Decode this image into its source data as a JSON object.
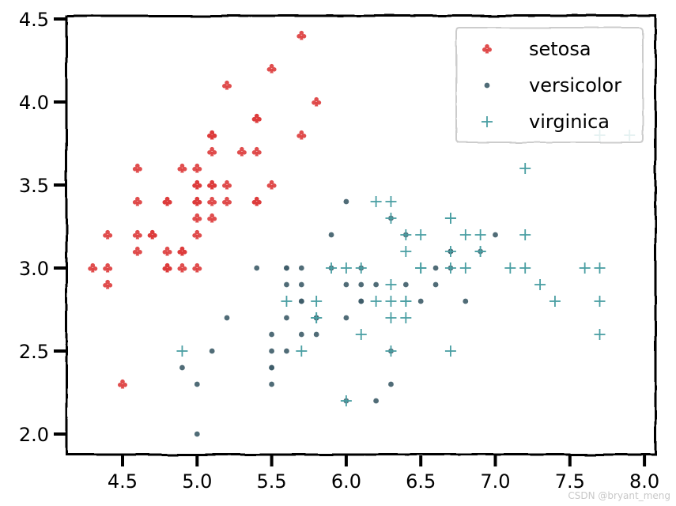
{
  "chart_data": {
    "type": "scatter",
    "title": "",
    "xlabel": "",
    "ylabel": "",
    "xlim": [
      4.2,
      8.1
    ],
    "ylim": [
      1.9,
      4.5
    ],
    "xticks": [
      "4.5",
      "5.0",
      "5.5",
      "6.0",
      "6.5",
      "7.0",
      "7.5",
      "8.0"
    ],
    "yticks": [
      "2.0",
      "2.5",
      "3.0",
      "3.5",
      "4.0",
      "4.5"
    ],
    "grid": false,
    "legend_position": "top-right",
    "series": [
      {
        "name": "setosa",
        "marker": "club",
        "color": "#dd3b3b",
        "points": [
          [
            5.1,
            3.5
          ],
          [
            4.9,
            3.0
          ],
          [
            4.7,
            3.2
          ],
          [
            4.6,
            3.1
          ],
          [
            5.0,
            3.6
          ],
          [
            5.4,
            3.9
          ],
          [
            4.6,
            3.4
          ],
          [
            5.0,
            3.4
          ],
          [
            4.4,
            2.9
          ],
          [
            4.9,
            3.1
          ],
          [
            5.4,
            3.7
          ],
          [
            4.8,
            3.4
          ],
          [
            4.8,
            3.0
          ],
          [
            4.3,
            3.0
          ],
          [
            5.8,
            4.0
          ],
          [
            5.7,
            4.4
          ],
          [
            5.4,
            3.9
          ],
          [
            5.1,
            3.5
          ],
          [
            5.7,
            3.8
          ],
          [
            5.1,
            3.8
          ],
          [
            5.4,
            3.4
          ],
          [
            5.1,
            3.7
          ],
          [
            4.6,
            3.6
          ],
          [
            5.1,
            3.3
          ],
          [
            4.8,
            3.4
          ],
          [
            5.0,
            3.0
          ],
          [
            5.0,
            3.4
          ],
          [
            5.2,
            3.5
          ],
          [
            5.2,
            3.4
          ],
          [
            4.7,
            3.2
          ],
          [
            4.8,
            3.1
          ],
          [
            5.4,
            3.4
          ],
          [
            5.2,
            4.1
          ],
          [
            5.5,
            4.2
          ],
          [
            4.9,
            3.1
          ],
          [
            5.0,
            3.2
          ],
          [
            5.5,
            3.5
          ],
          [
            4.9,
            3.6
          ],
          [
            4.4,
            3.0
          ],
          [
            5.1,
            3.4
          ],
          [
            5.0,
            3.5
          ],
          [
            4.5,
            2.3
          ],
          [
            4.4,
            3.2
          ],
          [
            5.0,
            3.5
          ],
          [
            5.1,
            3.8
          ],
          [
            4.8,
            3.0
          ],
          [
            5.1,
            3.8
          ],
          [
            4.6,
            3.2
          ],
          [
            5.3,
            3.7
          ],
          [
            5.0,
            3.3
          ]
        ]
      },
      {
        "name": "versicolor",
        "marker": "dot",
        "color": "#3d5c68",
        "points": [
          [
            7.0,
            3.2
          ],
          [
            6.4,
            3.2
          ],
          [
            6.9,
            3.1
          ],
          [
            5.5,
            2.3
          ],
          [
            6.5,
            2.8
          ],
          [
            5.7,
            2.8
          ],
          [
            6.3,
            3.3
          ],
          [
            4.9,
            2.4
          ],
          [
            6.6,
            2.9
          ],
          [
            5.2,
            2.7
          ],
          [
            5.0,
            2.0
          ],
          [
            5.9,
            3.0
          ],
          [
            6.0,
            2.2
          ],
          [
            6.1,
            2.9
          ],
          [
            5.6,
            2.9
          ],
          [
            6.7,
            3.1
          ],
          [
            5.6,
            3.0
          ],
          [
            5.8,
            2.7
          ],
          [
            6.2,
            2.2
          ],
          [
            5.6,
            2.5
          ],
          [
            5.9,
            3.2
          ],
          [
            6.1,
            2.8
          ],
          [
            6.3,
            2.5
          ],
          [
            6.1,
            2.8
          ],
          [
            6.4,
            2.9
          ],
          [
            6.6,
            3.0
          ],
          [
            6.8,
            2.8
          ],
          [
            6.7,
            3.0
          ],
          [
            6.0,
            2.9
          ],
          [
            5.7,
            2.6
          ],
          [
            5.5,
            2.4
          ],
          [
            5.5,
            2.4
          ],
          [
            5.8,
            2.7
          ],
          [
            6.0,
            2.7
          ],
          [
            5.4,
            3.0
          ],
          [
            6.0,
            3.4
          ],
          [
            6.7,
            3.1
          ],
          [
            6.3,
            2.3
          ],
          [
            5.6,
            3.0
          ],
          [
            5.5,
            2.5
          ],
          [
            5.5,
            2.6
          ],
          [
            6.1,
            3.0
          ],
          [
            5.8,
            2.6
          ],
          [
            5.0,
            2.3
          ],
          [
            5.6,
            2.7
          ],
          [
            5.7,
            3.0
          ],
          [
            5.7,
            2.9
          ],
          [
            6.2,
            2.9
          ],
          [
            5.1,
            2.5
          ],
          [
            5.7,
            2.8
          ]
        ]
      },
      {
        "name": "virginica",
        "marker": "plus",
        "color": "#4a9fa3",
        "points": [
          [
            6.3,
            3.3
          ],
          [
            5.8,
            2.7
          ],
          [
            7.1,
            3.0
          ],
          [
            6.3,
            2.9
          ],
          [
            6.5,
            3.0
          ],
          [
            7.6,
            3.0
          ],
          [
            4.9,
            2.5
          ],
          [
            7.3,
            2.9
          ],
          [
            6.7,
            2.5
          ],
          [
            7.2,
            3.6
          ],
          [
            6.5,
            3.2
          ],
          [
            6.4,
            2.7
          ],
          [
            6.8,
            3.0
          ],
          [
            5.7,
            2.5
          ],
          [
            5.8,
            2.8
          ],
          [
            6.4,
            3.2
          ],
          [
            6.5,
            3.0
          ],
          [
            7.7,
            3.8
          ],
          [
            7.7,
            2.6
          ],
          [
            6.0,
            2.2
          ],
          [
            6.9,
            3.2
          ],
          [
            5.6,
            2.8
          ],
          [
            7.7,
            2.8
          ],
          [
            6.3,
            2.7
          ],
          [
            6.7,
            3.3
          ],
          [
            7.2,
            3.2
          ],
          [
            6.2,
            2.8
          ],
          [
            6.1,
            3.0
          ],
          [
            6.4,
            2.8
          ],
          [
            7.2,
            3.0
          ],
          [
            7.4,
            2.8
          ],
          [
            7.9,
            3.8
          ],
          [
            6.4,
            2.8
          ],
          [
            6.3,
            2.8
          ],
          [
            6.1,
            2.6
          ],
          [
            7.7,
            3.0
          ],
          [
            6.3,
            3.4
          ],
          [
            6.4,
            3.1
          ],
          [
            6.0,
            3.0
          ],
          [
            6.9,
            3.1
          ],
          [
            6.7,
            3.1
          ],
          [
            6.9,
            3.1
          ],
          [
            5.8,
            2.7
          ],
          [
            6.8,
            3.2
          ],
          [
            6.7,
            3.3
          ],
          [
            6.7,
            3.0
          ],
          [
            6.3,
            2.5
          ],
          [
            6.5,
            3.0
          ],
          [
            6.2,
            3.4
          ],
          [
            5.9,
            3.0
          ]
        ]
      }
    ]
  },
  "watermark": "CSDN @bryant_meng"
}
